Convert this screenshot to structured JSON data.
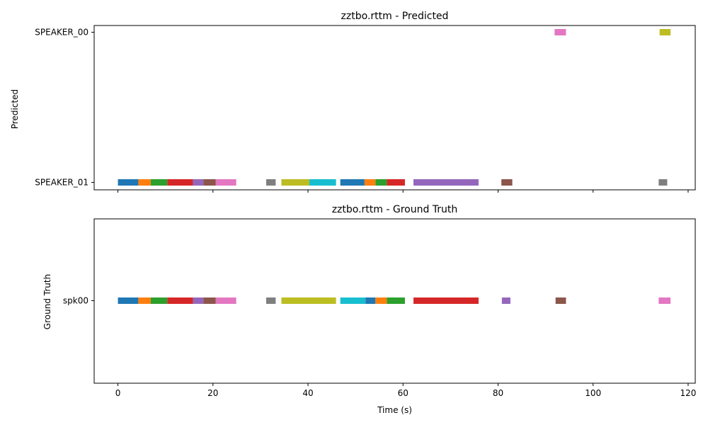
{
  "palette": [
    "#1f77b4",
    "#ff7f0e",
    "#2ca02c",
    "#d62728",
    "#9467bd",
    "#8c564b",
    "#e377c2",
    "#7f7f7f",
    "#bcbd22",
    "#17becf"
  ],
  "xaxis": {
    "label": "Time (s)",
    "xlim": [
      -5,
      121.5
    ],
    "ticks": [
      0,
      20,
      40,
      60,
      80,
      100,
      120
    ],
    "tick_labels": [
      "0",
      "20",
      "40",
      "60",
      "80",
      "100",
      "120"
    ]
  },
  "chart_data": [
    {
      "type": "timeline",
      "title": "zztbo.rttm - Predicted",
      "ylabel": "Predicted",
      "speakers": [
        "SPEAKER_01",
        "SPEAKER_00"
      ],
      "segments": [
        {
          "speaker": "SPEAKER_01",
          "start": 0.0,
          "end": 4.3,
          "color": 0
        },
        {
          "speaker": "SPEAKER_01",
          "start": 4.3,
          "end": 6.9,
          "color": 1
        },
        {
          "speaker": "SPEAKER_01",
          "start": 6.9,
          "end": 10.4,
          "color": 2
        },
        {
          "speaker": "SPEAKER_01",
          "start": 10.4,
          "end": 15.8,
          "color": 3
        },
        {
          "speaker": "SPEAKER_01",
          "start": 15.8,
          "end": 18.0,
          "color": 4
        },
        {
          "speaker": "SPEAKER_01",
          "start": 18.0,
          "end": 20.6,
          "color": 5
        },
        {
          "speaker": "SPEAKER_01",
          "start": 20.6,
          "end": 24.9,
          "color": 6
        },
        {
          "speaker": "SPEAKER_01",
          "start": 31.2,
          "end": 33.2,
          "color": 7
        },
        {
          "speaker": "SPEAKER_01",
          "start": 34.4,
          "end": 40.3,
          "color": 8
        },
        {
          "speaker": "SPEAKER_01",
          "start": 40.3,
          "end": 45.9,
          "color": 9
        },
        {
          "speaker": "SPEAKER_01",
          "start": 46.8,
          "end": 51.9,
          "color": 0
        },
        {
          "speaker": "SPEAKER_01",
          "start": 51.9,
          "end": 54.2,
          "color": 1
        },
        {
          "speaker": "SPEAKER_01",
          "start": 54.2,
          "end": 56.6,
          "color": 2
        },
        {
          "speaker": "SPEAKER_01",
          "start": 56.6,
          "end": 60.4,
          "color": 3
        },
        {
          "speaker": "SPEAKER_01",
          "start": 62.2,
          "end": 75.9,
          "color": 4
        },
        {
          "speaker": "SPEAKER_01",
          "start": 80.7,
          "end": 83.0,
          "color": 5
        },
        {
          "speaker": "SPEAKER_00",
          "start": 91.9,
          "end": 94.3,
          "color": 6
        },
        {
          "speaker": "SPEAKER_01",
          "start": 113.8,
          "end": 115.6,
          "color": 7
        },
        {
          "speaker": "SPEAKER_00",
          "start": 114.0,
          "end": 116.3,
          "color": 8
        }
      ]
    },
    {
      "type": "timeline",
      "title": "zztbo.rttm - Ground Truth",
      "ylabel": "Ground Truth",
      "speakers": [
        "spk00"
      ],
      "segments": [
        {
          "speaker": "spk00",
          "start": 0.0,
          "end": 4.3,
          "color": 0
        },
        {
          "speaker": "spk00",
          "start": 4.3,
          "end": 6.9,
          "color": 1
        },
        {
          "speaker": "spk00",
          "start": 6.9,
          "end": 10.4,
          "color": 2
        },
        {
          "speaker": "spk00",
          "start": 10.4,
          "end": 15.8,
          "color": 3
        },
        {
          "speaker": "spk00",
          "start": 15.8,
          "end": 18.0,
          "color": 4
        },
        {
          "speaker": "spk00",
          "start": 18.0,
          "end": 20.6,
          "color": 5
        },
        {
          "speaker": "spk00",
          "start": 20.6,
          "end": 24.9,
          "color": 6
        },
        {
          "speaker": "spk00",
          "start": 31.2,
          "end": 33.2,
          "color": 7
        },
        {
          "speaker": "spk00",
          "start": 34.4,
          "end": 45.9,
          "color": 8
        },
        {
          "speaker": "spk00",
          "start": 46.8,
          "end": 52.1,
          "color": 9
        },
        {
          "speaker": "spk00",
          "start": 52.1,
          "end": 54.2,
          "color": 0
        },
        {
          "speaker": "spk00",
          "start": 54.2,
          "end": 56.6,
          "color": 1
        },
        {
          "speaker": "spk00",
          "start": 56.6,
          "end": 60.4,
          "color": 2
        },
        {
          "speaker": "spk00",
          "start": 62.2,
          "end": 75.9,
          "color": 3
        },
        {
          "speaker": "spk00",
          "start": 80.8,
          "end": 82.6,
          "color": 4
        },
        {
          "speaker": "spk00",
          "start": 92.1,
          "end": 94.3,
          "color": 5
        },
        {
          "speaker": "spk00",
          "start": 113.8,
          "end": 116.3,
          "color": 6
        }
      ]
    }
  ]
}
